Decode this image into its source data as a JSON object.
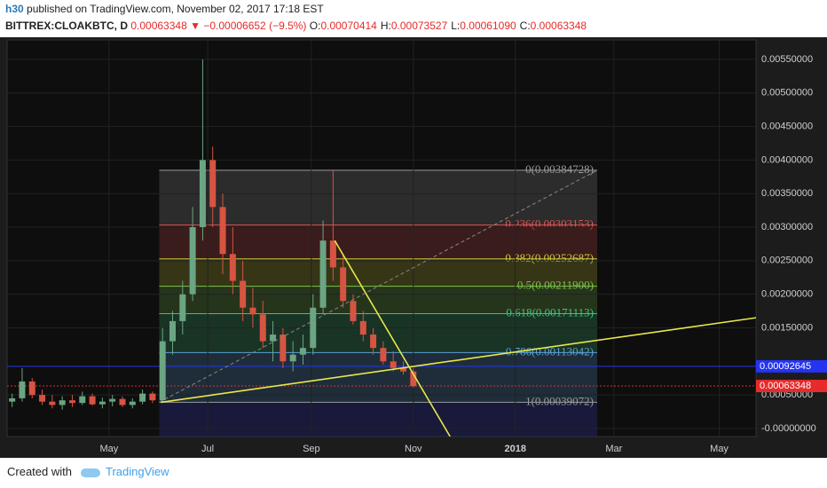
{
  "header": {
    "publisher": "h30",
    "published_text": "published on TradingView.com, November 02, 2017 17:18 EST"
  },
  "symbol_bar": {
    "symbol": "BITTREX:CLOAKBTC, D",
    "last": "0.00063348",
    "arrow": "▼",
    "change": "−0.00006652 (−9.5%)",
    "ohlc": [
      {
        "key": "O:",
        "value": "0.00070414"
      },
      {
        "key": "H:",
        "value": "0.00073527"
      },
      {
        "key": "L:",
        "value": "0.00061090"
      },
      {
        "key": "C:",
        "value": "0.00063348"
      }
    ]
  },
  "chart_data": {
    "type": "candlestick",
    "x": [
      3,
      9,
      15,
      21,
      27,
      33,
      39,
      45,
      51,
      57,
      63,
      69,
      75,
      81,
      87,
      93,
      99,
      105,
      111,
      117,
      123,
      129,
      135,
      141,
      147,
      153,
      159,
      165,
      171,
      177,
      183,
      189,
      195,
      201,
      207,
      213,
      219,
      225,
      231,
      237,
      243
    ],
    "open": [
      0.0004,
      0.00045,
      0.0007,
      0.0005,
      0.0004,
      0.00035,
      0.00042,
      0.00038,
      0.00048,
      0.00036,
      0.0004,
      0.00044,
      0.00035,
      0.0004,
      0.00052,
      0.00042,
      0.0013,
      0.0016,
      0.002,
      0.003,
      0.004,
      0.0033,
      0.0026,
      0.0022,
      0.0018,
      0.0017,
      0.0013,
      0.0014,
      0.001,
      0.0011,
      0.0012,
      0.0018,
      0.0028,
      0.0024,
      0.0019,
      0.0016,
      0.0014,
      0.0012,
      0.001,
      0.0009,
      0.00085
    ],
    "high": [
      0.00052,
      0.0009,
      0.00075,
      0.00058,
      0.0005,
      0.00048,
      0.0005,
      0.00055,
      0.00052,
      0.00046,
      0.0005,
      0.00048,
      0.00045,
      0.00058,
      0.00055,
      0.0015,
      0.00175,
      0.0022,
      0.0033,
      0.0055,
      0.0042,
      0.0035,
      0.003,
      0.0025,
      0.0021,
      0.0019,
      0.0016,
      0.0015,
      0.0013,
      0.0014,
      0.002,
      0.0031,
      0.00385,
      0.0026,
      0.002,
      0.00175,
      0.0015,
      0.0013,
      0.00115,
      0.001,
      0.0009
    ],
    "low": [
      0.00032,
      0.0004,
      0.00045,
      0.00035,
      0.0003,
      0.00028,
      0.00032,
      0.00035,
      0.00034,
      0.0003,
      0.00033,
      0.00032,
      0.0003,
      0.00036,
      0.00038,
      0.0004,
      0.0011,
      0.0014,
      0.0019,
      0.0028,
      0.003,
      0.0023,
      0.002,
      0.0016,
      0.0015,
      0.0012,
      0.001,
      0.0009,
      0.00085,
      0.00095,
      0.0011,
      0.0017,
      0.0022,
      0.0018,
      0.00155,
      0.0013,
      0.0011,
      0.00095,
      0.00085,
      0.0008,
      0.00061
    ],
    "close": [
      0.00045,
      0.0007,
      0.0005,
      0.0004,
      0.00035,
      0.00042,
      0.00038,
      0.00048,
      0.00036,
      0.0004,
      0.00044,
      0.00035,
      0.0004,
      0.00052,
      0.00042,
      0.0013,
      0.0016,
      0.002,
      0.003,
      0.004,
      0.0033,
      0.0026,
      0.0022,
      0.0018,
      0.0017,
      0.0013,
      0.0014,
      0.001,
      0.0011,
      0.0012,
      0.0018,
      0.0028,
      0.0024,
      0.0019,
      0.0016,
      0.0014,
      0.0012,
      0.001,
      0.0009,
      0.00085,
      0.00063
    ],
    "up_color": "#6ba583",
    "down_color": "#d75442",
    "xlim": [
      0,
      448
    ],
    "xticks": [
      {
        "value": 61,
        "label": "May"
      },
      {
        "value": 120,
        "label": "Jul"
      },
      {
        "value": 182,
        "label": "Sep"
      },
      {
        "value": 243,
        "label": "Nov"
      },
      {
        "value": 304,
        "label": "2018"
      },
      {
        "value": 363,
        "label": "Mar"
      },
      {
        "value": 426,
        "label": "May"
      }
    ],
    "ylim": [
      -0.00012,
      0.00579
    ],
    "yticks": [
      {
        "value": 0.0055,
        "label": "0.00550000"
      },
      {
        "value": 0.005,
        "label": "0.00500000"
      },
      {
        "value": 0.0045,
        "label": "0.00450000"
      },
      {
        "value": 0.004,
        "label": "0.00400000"
      },
      {
        "value": 0.0035,
        "label": "0.00350000"
      },
      {
        "value": 0.003,
        "label": "0.00300000"
      },
      {
        "value": 0.0025,
        "label": "0.00250000"
      },
      {
        "value": 0.002,
        "label": "0.00200000"
      },
      {
        "value": 0.0015,
        "label": "0.00150000"
      },
      {
        "value": 0.0005,
        "label": "0.00050000"
      },
      {
        "value": 0,
        "label": "-0.00000000"
      }
    ],
    "fib": {
      "x_range": [
        91,
        353
      ],
      "levels": [
        {
          "value": 0.00384728,
          "label": "0(0.00384728)",
          "color": "#9a9a9a"
        },
        {
          "value": 0.00303153,
          "label": "0.236(0.00303153)",
          "color": "#e05252"
        },
        {
          "value": 0.00252687,
          "label": "0.382(0.00252687)",
          "color": "#c9c93c"
        },
        {
          "value": 0.002119,
          "label": "0.5(0.00211900)",
          "color": "#7dc24e"
        },
        {
          "value": 0.00171113,
          "label": "0.618(0.00171113)",
          "color": "#45c07a"
        },
        {
          "value": 0.00113042,
          "label": "0.786(0.00113042)",
          "color": "#5aa0d6"
        },
        {
          "value": 0.00039072,
          "label": "1(0.00039072)",
          "color": "#9a9a9a"
        }
      ]
    },
    "trendlines": [
      {
        "x": [
          92,
          448
        ],
        "y": [
          0.00039,
          0.00165
        ],
        "color": "#e8e84a",
        "dashed": false
      },
      {
        "x": [
          196,
          265
        ],
        "y": [
          0.0028,
          -0.00012
        ],
        "color": "#e8e84a",
        "dashed": false
      },
      {
        "x": [
          91,
          353
        ],
        "y": [
          0.00039072,
          0.00384728
        ],
        "color": "#888888",
        "dashed": true
      }
    ],
    "price_markers": [
      {
        "value": 0.00092645,
        "color": "#2434f0"
      },
      {
        "value": 0.00063348,
        "color": "#e52b2b"
      }
    ]
  },
  "footer": {
    "created_with": "Created with",
    "brand": "TradingView"
  }
}
